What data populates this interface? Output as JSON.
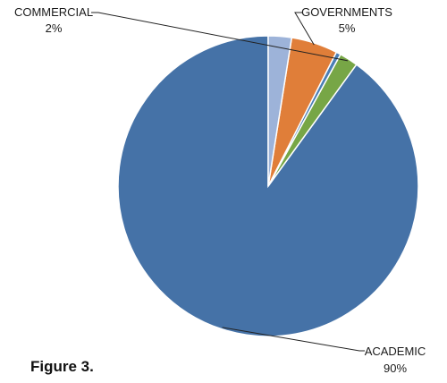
{
  "figure_caption": "Figure 3.",
  "chart_data": {
    "type": "pie",
    "start_angle_deg": 0,
    "direction": "counterclockwise",
    "slices": [
      {
        "label": "ACADEMIC",
        "value": 90,
        "value_text": "90%",
        "color": "#4572A7",
        "labeled": true
      },
      {
        "label": "COMMERCIAL",
        "value": 2,
        "value_text": "2%",
        "color": "#77A646",
        "labeled": true
      },
      {
        "label": "",
        "value": 0.5,
        "value_text": "",
        "color": "#4A7EB5",
        "labeled": false
      },
      {
        "label": "GOVERNMENTS",
        "value": 5,
        "value_text": "5%",
        "color": "#E07E39",
        "labeled": true
      },
      {
        "label": "",
        "value": 2.5,
        "value_text": "",
        "color": "#9DB3D9",
        "labeled": false
      }
    ]
  }
}
